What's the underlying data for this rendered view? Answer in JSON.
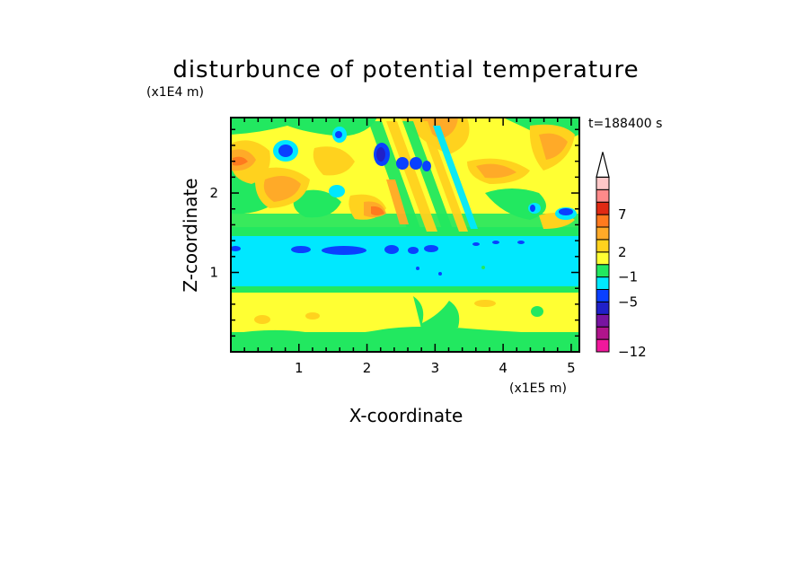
{
  "chart_data": {
    "type": "heatmap",
    "title": "disturbunce of potential temperature",
    "xlabel": "X-coordinate",
    "ylabel": "Z-coordinate",
    "x_unit": "(x1E5 m)",
    "y_unit": "(x1E4 m)",
    "time_label": "t=188400 s",
    "xlim": [
      0,
      5.12
    ],
    "ylim": [
      0,
      2.95
    ],
    "x_ticks": [
      1,
      2,
      3,
      4,
      5
    ],
    "y_ticks": [
      1,
      2
    ],
    "x_tick_labels": [
      "1",
      "2",
      "3",
      "4",
      "5"
    ],
    "y_tick_labels": [
      "1",
      "2"
    ],
    "colorbar": {
      "bins": [
        {
          "color": "#f0189c"
        },
        {
          "color": "#b0148c"
        },
        {
          "color": "#7814a0"
        },
        {
          "color": "#2020c8"
        },
        {
          "color": "#0a40ff"
        },
        {
          "color": "#00e8ff"
        },
        {
          "color": "#22e860"
        },
        {
          "color": "#ffff33"
        },
        {
          "color": "#ffd21e"
        },
        {
          "color": "#ffaa28"
        },
        {
          "color": "#ff7a1e"
        },
        {
          "color": "#e02a14"
        },
        {
          "color": "#ff8a8a"
        },
        {
          "color": "#ffc8c8"
        }
      ],
      "labels": [
        {
          "value": "-12",
          "at_bin_edge": 0
        },
        {
          "value": "-5",
          "at_bin_edge": 4
        },
        {
          "value": "-1",
          "at_bin_edge": 6
        },
        {
          "value": "2",
          "at_bin_edge": 8
        },
        {
          "value": "7",
          "at_bin_edge": 11
        }
      ],
      "extend_max": true
    },
    "regions": [
      {
        "band": [
          0.0,
          0.25
        ],
        "x": [
          0,
          5.12
        ],
        "color": "#22e860"
      },
      {
        "band": [
          0.25,
          0.78
        ],
        "x": [
          0,
          5.12
        ],
        "color": "#ffff33"
      },
      {
        "band": [
          0.78,
          0.85
        ],
        "x": [
          0,
          5.12
        ],
        "color": "#22e860"
      },
      {
        "band": [
          0.85,
          1.5
        ],
        "x": [
          0,
          5.12
        ],
        "color": "#00e8ff"
      },
      {
        "band": [
          1.5,
          1.62
        ],
        "x": [
          0,
          5.12
        ],
        "color": "#22e860"
      },
      {
        "band": [
          1.62,
          2.95
        ],
        "x": [
          0,
          5.12
        ],
        "color": "#ffff33"
      }
    ]
  }
}
